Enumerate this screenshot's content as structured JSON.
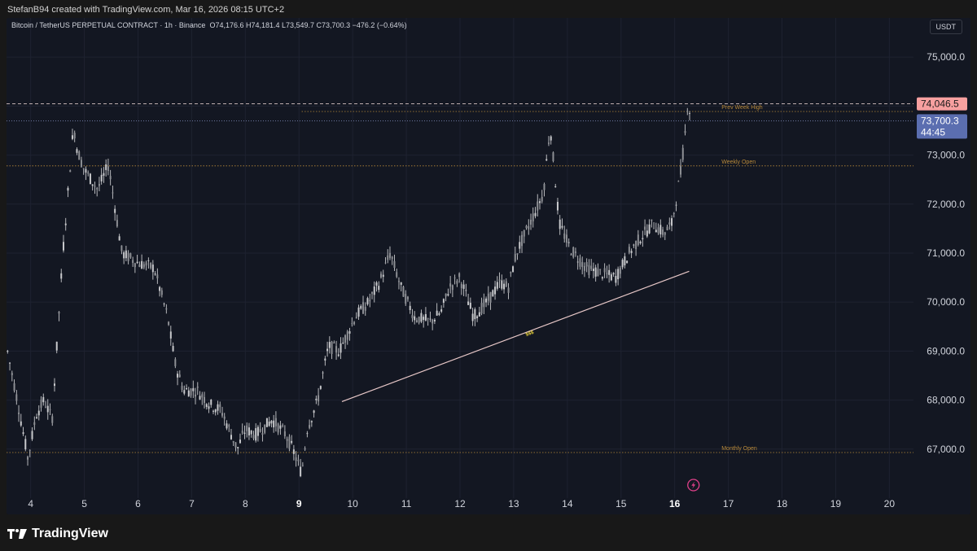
{
  "header": {
    "credit": "StefanB94 created with TradingView.com, Mar 16, 2026 08:15 UTC+2"
  },
  "legend": {
    "symbol": "Bitcoin / TetherUS PERPETUAL CONTRACT · 1h · Binance",
    "ohlc": "O74,176.6 H74,181.4 L73,549.7 C73,700.3 −476.2 (−0.64%)"
  },
  "currency": "USDT",
  "footer": {
    "brand": "TradingView"
  },
  "colors": {
    "background": "#131722",
    "candle": "#c8c9cc",
    "guide": "#b8893a",
    "trendline": "#e8c8c8",
    "grid": "#1e2230",
    "price_tag": "#f7a0a0",
    "last_tag": "#5b6eb0",
    "event_icon": "#e0408a"
  },
  "chart_data": {
    "type": "candlestick",
    "interval": "1h",
    "ylim": [
      66000,
      75800
    ],
    "y_ticks": [
      "67,000.0",
      "68,000.0",
      "69,000.0",
      "70,000.0",
      "71,000.0",
      "72,000.0",
      "73,000.0",
      "74,000.0",
      "75,000.0"
    ],
    "y_tick_values": [
      67000,
      68000,
      69000,
      70000,
      71000,
      72000,
      73000,
      74000,
      75000
    ],
    "xlim": [
      3.55,
      20.45
    ],
    "x_ticks": [
      "4",
      "5",
      "6",
      "7",
      "8",
      "9",
      "10",
      "11",
      "12",
      "13",
      "14",
      "15",
      "16",
      "17",
      "18",
      "19",
      "20"
    ],
    "x_tick_values": [
      4,
      5,
      6,
      7,
      8,
      9,
      10,
      11,
      12,
      13,
      14,
      15,
      16,
      17,
      18,
      19,
      20
    ],
    "x_bold": [
      "9",
      "16"
    ],
    "price_anchors": [
      [
        3.55,
        69100
      ],
      [
        3.75,
        68000
      ],
      [
        3.95,
        66800
      ],
      [
        4.1,
        67700
      ],
      [
        4.25,
        68000
      ],
      [
        4.4,
        67600
      ],
      [
        4.6,
        71000
      ],
      [
        4.8,
        73600
      ],
      [
        4.87,
        73100
      ],
      [
        5.0,
        72700
      ],
      [
        5.25,
        72300
      ],
      [
        5.45,
        72800
      ],
      [
        5.7,
        71000
      ],
      [
        6.0,
        70800
      ],
      [
        6.3,
        70700
      ],
      [
        6.55,
        69700
      ],
      [
        6.7,
        68700
      ],
      [
        6.85,
        68200
      ],
      [
        7.1,
        68200
      ],
      [
        7.35,
        67900
      ],
      [
        7.55,
        67800
      ],
      [
        7.85,
        67000
      ],
      [
        8.0,
        67400
      ],
      [
        8.2,
        67300
      ],
      [
        8.5,
        67600
      ],
      [
        8.75,
        67300
      ],
      [
        8.9,
        66950
      ],
      [
        9.05,
        66500
      ],
      [
        9.15,
        67400
      ],
      [
        9.35,
        68000
      ],
      [
        9.55,
        69100
      ],
      [
        9.75,
        69000
      ],
      [
        10.05,
        69700
      ],
      [
        10.3,
        70000
      ],
      [
        10.5,
        70400
      ],
      [
        10.7,
        71000
      ],
      [
        10.9,
        70300
      ],
      [
        11.15,
        69700
      ],
      [
        11.45,
        69600
      ],
      [
        11.65,
        69800
      ],
      [
        11.8,
        70300
      ],
      [
        12.0,
        70500
      ],
      [
        12.25,
        69700
      ],
      [
        12.5,
        70000
      ],
      [
        12.75,
        70400
      ],
      [
        12.9,
        70300
      ],
      [
        13.05,
        71000
      ],
      [
        13.3,
        71600
      ],
      [
        13.55,
        72200
      ],
      [
        13.68,
        73600
      ],
      [
        13.85,
        71600
      ],
      [
        14.05,
        71100
      ],
      [
        14.35,
        70700
      ],
      [
        14.6,
        70600
      ],
      [
        14.9,
        70500
      ],
      [
        15.15,
        71000
      ],
      [
        15.35,
        71300
      ],
      [
        15.6,
        71600
      ],
      [
        15.8,
        71400
      ],
      [
        15.95,
        71600
      ],
      [
        16.12,
        72700
      ],
      [
        16.2,
        73500
      ],
      [
        16.25,
        74200
      ],
      [
        16.3,
        73700
      ]
    ],
    "last_price": {
      "value": 73700.3,
      "label": "73,700.3",
      "countdown": "44:45"
    },
    "crosshair": {
      "value": 74046.5,
      "label": "74,046.5"
    },
    "levels": [
      {
        "name": "Prev Week High",
        "value": 73890,
        "x_start": 9.05,
        "x_end": 20.45
      },
      {
        "name": "Weekly Open",
        "value": 72780,
        "x_start": 3.55,
        "x_end": 20.45
      },
      {
        "name": "Monthly Open",
        "value": 66930,
        "x_start": 3.55,
        "x_end": 20.45
      }
    ],
    "level_label_x": 16.6,
    "trendline": {
      "x1": 9.8,
      "y1": 67970,
      "x2": 16.27,
      "y2": 70630,
      "label": "$$$"
    },
    "event_marker_x": 16.35
  }
}
